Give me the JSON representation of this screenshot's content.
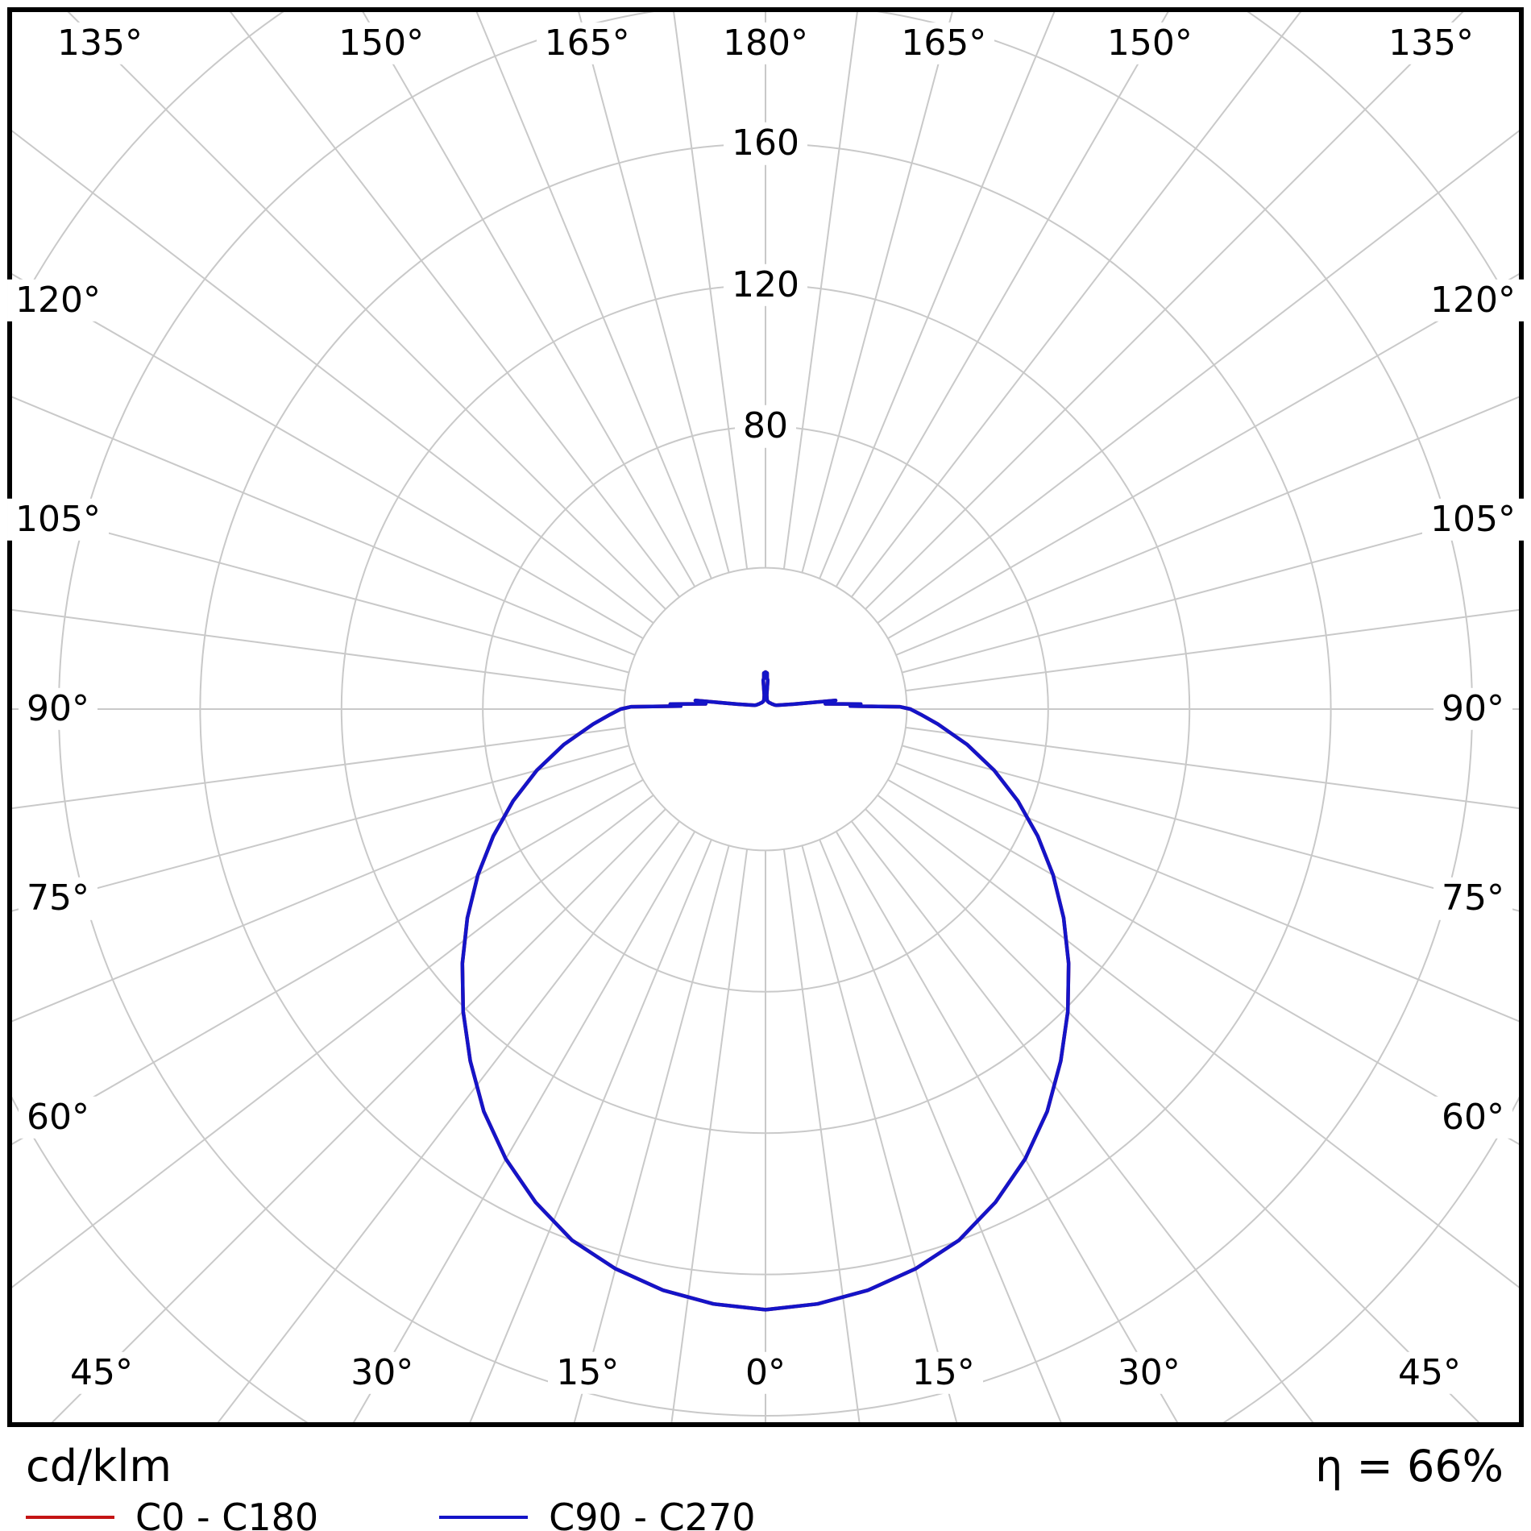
{
  "footer": {
    "unit_label": "cd/klm",
    "efficiency": "η = 66%"
  },
  "legend": [
    {
      "label": "C0 - C180",
      "color": "#c41414"
    },
    {
      "label": "C90 - C270",
      "color": "#1414c8"
    }
  ],
  "chart_data": {
    "type": "polar",
    "subtype": "photometric_luminous_intensity_distribution",
    "radial_unit": "cd/klm",
    "efficiency_text": "η = 66%",
    "grid": {
      "grid_color": "#c9c9c9",
      "circle_values": [
        40,
        80,
        120,
        160,
        200,
        240
      ],
      "labeled_circle_values": [
        "80",
        "120",
        "160"
      ],
      "spoke_step_deg": 7.5,
      "angle_label_step_deg": 15,
      "angle_labels": [
        "0°",
        "15°",
        "30°",
        "45°",
        "60°",
        "75°",
        "90°",
        "105°",
        "120°",
        "135°",
        "150°",
        "165°",
        "180°"
      ]
    },
    "series": [
      {
        "name": "C0 - C180",
        "color": "#c41414",
        "note": "hidden beneath C90 - C270 curve (identical values)",
        "points": [
          [
            0,
            170
          ],
          [
            5,
            169
          ],
          [
            10,
            167
          ],
          [
            15,
            164
          ],
          [
            20,
            160
          ],
          [
            25,
            154
          ],
          [
            30,
            147
          ],
          [
            35,
            139
          ],
          [
            40,
            130
          ],
          [
            45,
            121
          ],
          [
            50,
            112
          ],
          [
            55,
            103
          ],
          [
            60,
            94
          ],
          [
            65,
            85
          ],
          [
            70,
            76
          ],
          [
            75,
            67
          ],
          [
            80,
            58
          ],
          [
            85,
            49
          ],
          [
            88,
            44
          ],
          [
            90,
            41
          ],
          [
            91,
            38
          ],
          [
            92,
            24
          ],
          [
            93,
            27
          ],
          [
            95,
            17
          ],
          [
            97,
            20
          ],
          [
            99,
            10
          ],
          [
            100,
            8
          ],
          [
            105,
            4.5
          ],
          [
            110,
            3.2
          ],
          [
            115,
            2.8
          ],
          [
            120,
            2.6
          ],
          [
            130,
            2.3
          ],
          [
            140,
            2.2
          ],
          [
            150,
            2.1
          ],
          [
            160,
            2.2
          ],
          [
            165,
            2.3
          ],
          [
            170,
            2.6
          ],
          [
            173,
            3.2
          ],
          [
            175,
            4
          ],
          [
            175.5,
            8.2
          ],
          [
            177,
            8.8
          ],
          [
            177.5,
            10.2
          ],
          [
            180,
            10.5
          ]
        ]
      },
      {
        "name": "C90 - C270",
        "color": "#1414c8",
        "points": [
          [
            0,
            170
          ],
          [
            5,
            169
          ],
          [
            10,
            167
          ],
          [
            15,
            164
          ],
          [
            20,
            160
          ],
          [
            25,
            154
          ],
          [
            30,
            147
          ],
          [
            35,
            139
          ],
          [
            40,
            130
          ],
          [
            45,
            121
          ],
          [
            50,
            112
          ],
          [
            55,
            103
          ],
          [
            60,
            94
          ],
          [
            65,
            85
          ],
          [
            70,
            76
          ],
          [
            75,
            67
          ],
          [
            80,
            58
          ],
          [
            85,
            49
          ],
          [
            88,
            44
          ],
          [
            90,
            41
          ],
          [
            91,
            38
          ],
          [
            92,
            24
          ],
          [
            93,
            27
          ],
          [
            95,
            17
          ],
          [
            97,
            20
          ],
          [
            99,
            10
          ],
          [
            100,
            8
          ],
          [
            105,
            4.5
          ],
          [
            110,
            3.2
          ],
          [
            115,
            2.8
          ],
          [
            120,
            2.6
          ],
          [
            130,
            2.3
          ],
          [
            140,
            2.2
          ],
          [
            150,
            2.1
          ],
          [
            160,
            2.2
          ],
          [
            165,
            2.3
          ],
          [
            170,
            2.6
          ],
          [
            173,
            3.2
          ],
          [
            175,
            4
          ],
          [
            175.5,
            8.2
          ],
          [
            177,
            8.8
          ],
          [
            177.5,
            10.2
          ],
          [
            180,
            10.5
          ]
        ]
      }
    ],
    "layout_hints": {
      "gamma_zero_direction": "down",
      "angle_labels_mirrored_both_sides": true,
      "max_value_at_0deg": 170
    }
  }
}
